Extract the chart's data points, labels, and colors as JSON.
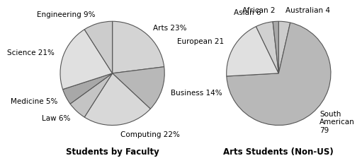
{
  "chart1": {
    "title": "Students by Faculty",
    "labels": [
      "Arts 23%",
      "Business 14%",
      "Computing 22%",
      "Law 6%",
      "Medicine 5%",
      "Science 21%",
      "Engineering 9%"
    ],
    "values": [
      23,
      14,
      22,
      6,
      5,
      21,
      9
    ],
    "colors": [
      "#d4d4d4",
      "#b8b8b8",
      "#d8d8d8",
      "#c4c4c4",
      "#a8a8a8",
      "#e0e0e0",
      "#cccccc"
    ],
    "startangle": 90,
    "counterclock": false
  },
  "chart2": {
    "title": "Arts Students (Non-US)",
    "labels": [
      "Australian 4",
      "South\nAmerican\n79",
      "European 21",
      "Asian 6",
      "African 2"
    ],
    "values": [
      4,
      79,
      21,
      6,
      2
    ],
    "colors": [
      "#cccccc",
      "#b8b8b8",
      "#e0e0e0",
      "#d0d0d0",
      "#a8a8a8"
    ],
    "startangle": 90,
    "counterclock": false
  },
  "background_color": "#ffffff",
  "title_fontsize": 8.5,
  "label_fontsize": 7.5,
  "edge_color": "#555555",
  "edge_linewidth": 0.8
}
